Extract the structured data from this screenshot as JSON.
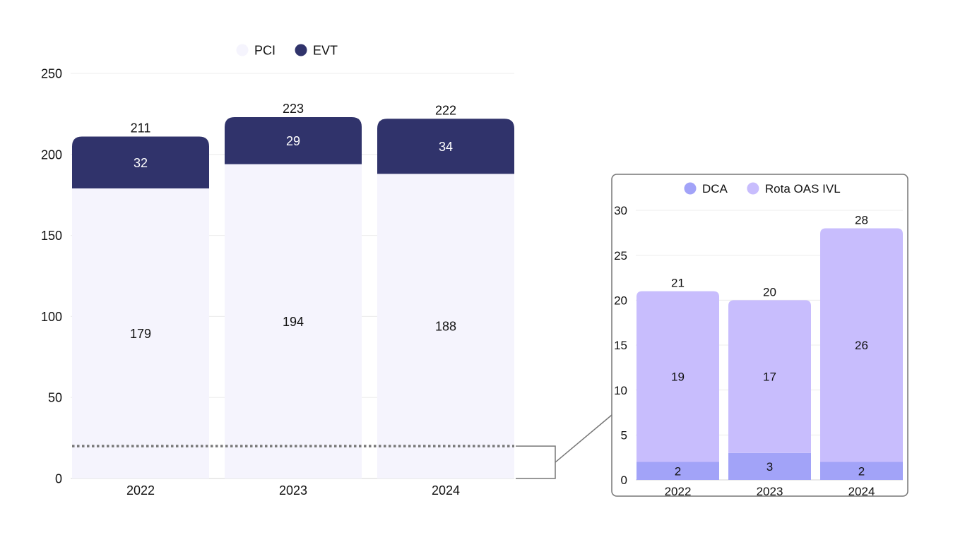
{
  "chart_data": [
    {
      "type": "bar",
      "stacked": true,
      "categories": [
        "2022",
        "2023",
        "2024"
      ],
      "series": [
        {
          "name": "PCI",
          "values": [
            179,
            194,
            188
          ],
          "color": "#f5f4fd"
        },
        {
          "name": "EVT",
          "values": [
            32,
            29,
            34
          ],
          "color": "#30336b"
        }
      ],
      "totals": [
        211,
        223,
        222
      ],
      "ylim": [
        0,
        250
      ],
      "yticks": [
        "0",
        "50",
        "100",
        "150",
        "200",
        "250"
      ],
      "ytick_values": [
        0,
        50,
        100,
        150,
        200,
        250
      ],
      "grid": true,
      "legend": "top-center",
      "reference_line": {
        "value": 20,
        "style": "dotted",
        "color": "#777777"
      }
    },
    {
      "type": "bar",
      "stacked": true,
      "categories": [
        "2022",
        "2023",
        "2024"
      ],
      "series": [
        {
          "name": "DCA",
          "values": [
            2,
            3,
            2
          ],
          "color": "#a2a3f8"
        },
        {
          "name": "Rota OAS IVL",
          "values": [
            19,
            17,
            26
          ],
          "color": "#c8bdfd"
        }
      ],
      "totals": [
        21,
        20,
        28
      ],
      "ylim": [
        0,
        30
      ],
      "yticks": [
        "0",
        "5",
        "10",
        "15",
        "20",
        "25",
        "30"
      ],
      "ytick_values": [
        0,
        5,
        10,
        15,
        20,
        25,
        30
      ],
      "grid": true,
      "legend": "top-center"
    }
  ]
}
